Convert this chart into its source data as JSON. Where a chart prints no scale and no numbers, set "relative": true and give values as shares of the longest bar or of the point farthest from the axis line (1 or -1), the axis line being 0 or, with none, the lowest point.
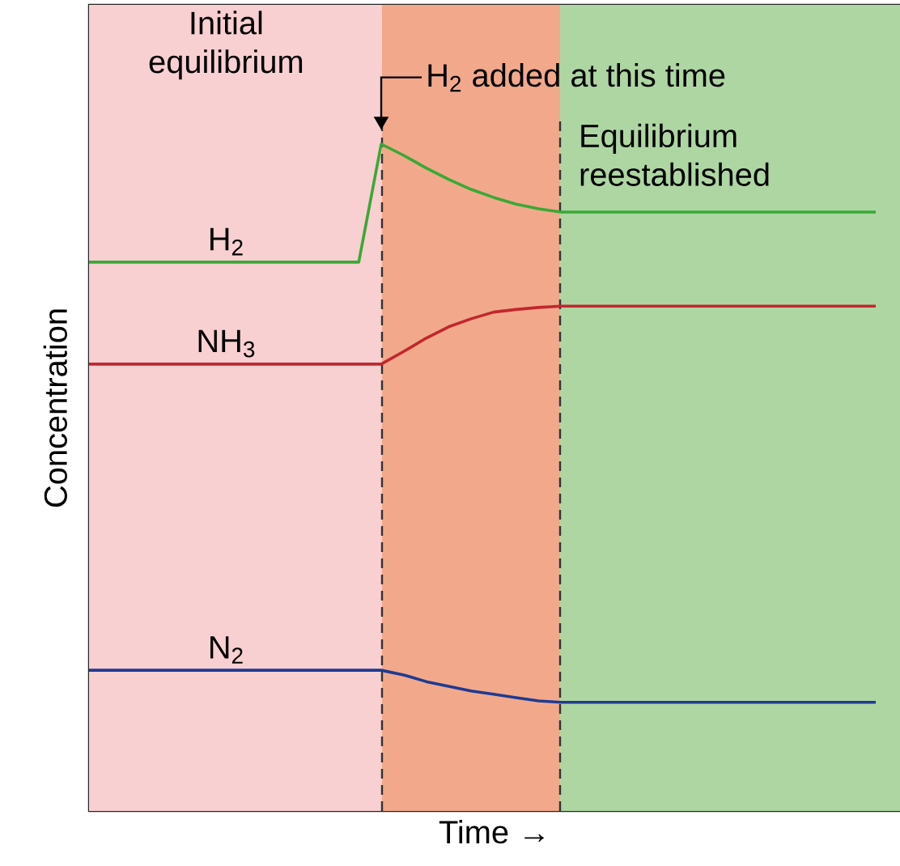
{
  "chart_data": {
    "type": "line",
    "relative": true,
    "xlabel": "Time →",
    "ylabel": "Concentration",
    "categories": [
      null,
      null,
      null,
      null,
      null,
      null,
      null,
      null,
      null,
      null,
      null,
      null,
      null,
      null,
      null,
      null,
      null,
      null,
      null,
      null,
      null,
      null,
      null,
      null,
      null,
      null,
      null,
      null,
      null,
      null,
      null,
      null,
      null,
      null,
      null,
      null
    ],
    "series": [
      {
        "name": "H$_{2}$",
        "color": "#3aa935",
        "values": [
          0.823,
          0.823,
          0.823,
          0.823,
          0.823,
          0.823,
          0.823,
          0.823,
          0.823,
          0.823,
          0.823,
          0.823,
          0.823,
          1.0,
          0.983,
          0.964,
          0.947,
          0.932,
          0.92,
          0.91,
          0.903,
          0.898,
          0.898,
          0.898,
          0.898,
          0.898,
          0.898,
          0.898,
          0.898,
          0.898,
          0.898,
          0.898,
          0.898,
          0.898,
          0.898,
          0.898
        ]
      },
      {
        "name": "NH$_{3}$",
        "color": "#c0282d",
        "values": [
          0.67,
          0.67,
          0.67,
          0.67,
          0.67,
          0.67,
          0.67,
          0.67,
          0.67,
          0.67,
          0.67,
          0.67,
          0.67,
          0.67,
          0.689,
          0.709,
          0.726,
          0.738,
          0.748,
          0.752,
          0.755,
          0.757,
          0.757,
          0.757,
          0.757,
          0.757,
          0.757,
          0.757,
          0.757,
          0.757,
          0.757,
          0.757,
          0.757,
          0.757,
          0.757,
          0.757
        ]
      },
      {
        "name": "N$_{2}$",
        "color": "#1f3a93",
        "values": [
          0.211,
          0.211,
          0.211,
          0.211,
          0.211,
          0.211,
          0.211,
          0.211,
          0.211,
          0.211,
          0.211,
          0.211,
          0.211,
          0.211,
          0.204,
          0.194,
          0.187,
          0.18,
          0.175,
          0.17,
          0.165,
          0.163,
          0.163,
          0.163,
          0.163,
          0.163,
          0.163,
          0.163,
          0.163,
          0.163,
          0.163,
          0.163,
          0.163,
          0.163,
          0.163,
          0.163
        ]
      }
    ],
    "annotations": [
      "Initial equilibrium",
      "H$_{2}$ added at this time",
      "Equilibrium reestablished"
    ]
  }
}
